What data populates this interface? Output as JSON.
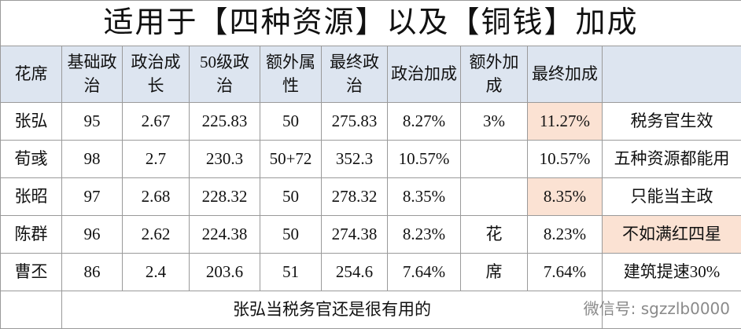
{
  "title": "适用于【四种资源】以及【铜钱】加成",
  "table": {
    "header": [
      "花席",
      "基础政治",
      "政治成长",
      "50级政治",
      "额外属性",
      "最终政治",
      "政治加成",
      "额外加成",
      "最终加成",
      null
    ],
    "rows": [
      [
        "张弘",
        "95",
        "2.67",
        "225.83",
        "50",
        "275.83",
        "8.27%",
        "3%",
        "11.27%",
        "税务官生效"
      ],
      [
        "荀彧",
        "98",
        "2.7",
        "230.3",
        "50+72",
        "352.3",
        "10.57%",
        null,
        "10.57%",
        "五种资源都能用"
      ],
      [
        "张昭",
        "97",
        "2.68",
        "228.32",
        "50",
        "278.32",
        "8.35%",
        null,
        "8.35%",
        "只能当主政"
      ],
      [
        "陈群",
        "96",
        "2.62",
        "224.38",
        "50",
        "274.38",
        "8.23%",
        "花",
        "8.23%",
        "不如满红四星"
      ],
      [
        "曹丕",
        "86",
        "2.4",
        "203.6",
        "51",
        "254.6",
        "7.64%",
        "席",
        "7.64%",
        "建筑提速30%"
      ]
    ],
    "highlighted": [
      [
        0,
        8
      ],
      [
        2,
        8
      ],
      [
        3,
        9
      ]
    ],
    "footer": "张弘当税务官还是很有用的"
  },
  "watermark": "微信号: sgzzlb0000"
}
